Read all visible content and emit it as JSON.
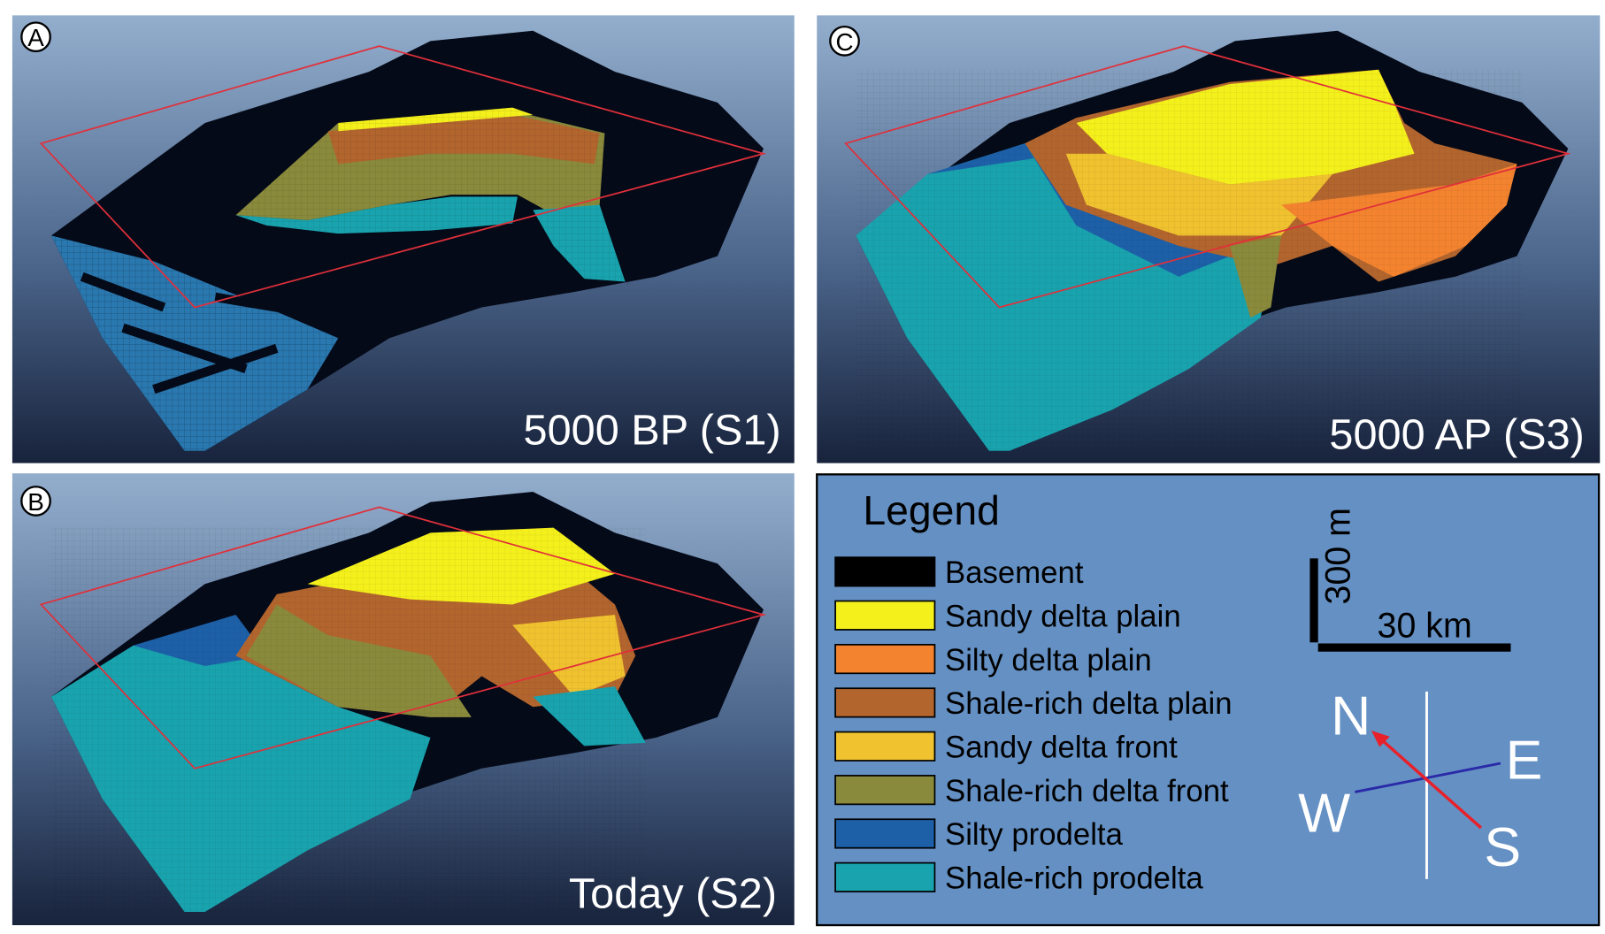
{
  "panels": [
    {
      "label": "A",
      "caption": "5000 BP (S1)"
    },
    {
      "label": "C",
      "caption": "5000 AP (S3)"
    },
    {
      "label": "B",
      "caption": "Today (S2)"
    }
  ],
  "legend": {
    "title": "Legend",
    "items": [
      {
        "name": "Basement",
        "color": "#000000"
      },
      {
        "name": "Sandy delta plain",
        "color": "#f4f01c"
      },
      {
        "name": "Silty delta plain",
        "color": "#f3832f"
      },
      {
        "name": "Shale-rich delta plain",
        "color": "#b3652e"
      },
      {
        "name": "Sandy delta front",
        "color": "#f0c22f"
      },
      {
        "name": "Shale-rich delta front",
        "color": "#8a8a3c"
      },
      {
        "name": "Silty prodelta",
        "color": "#1d60a8"
      },
      {
        "name": "Shale-rich prodelta",
        "color": "#19a3ae"
      }
    ]
  },
  "scale_bar": {
    "vertical": "300 m",
    "horizontal": "30 km"
  },
  "compass": {
    "north": "N",
    "east": "E",
    "south": "S",
    "west": "W"
  }
}
